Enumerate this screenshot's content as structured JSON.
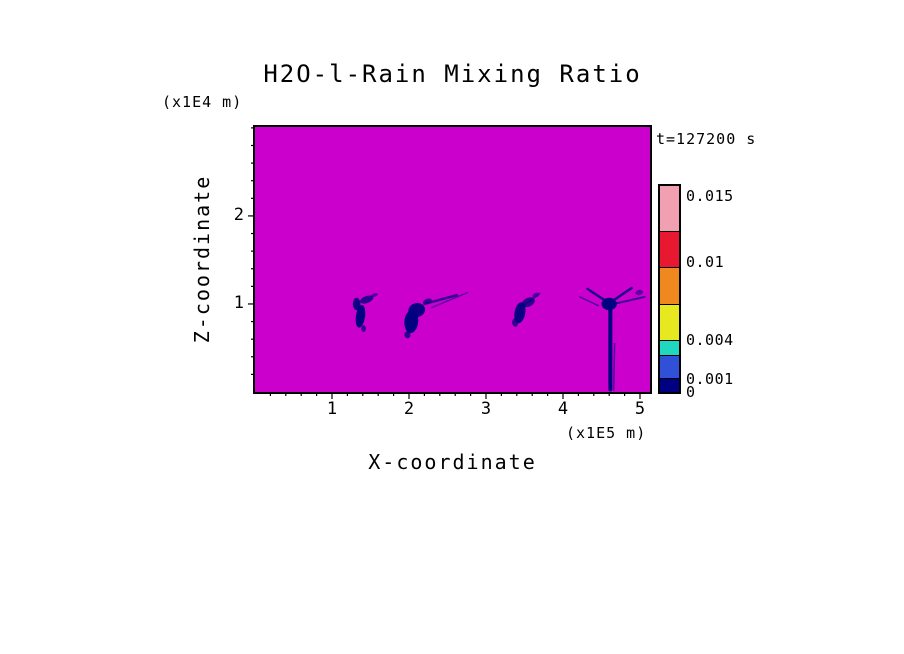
{
  "chart_data": {
    "type": "heatmap",
    "title": "H2O-l-Rain Mixing Ratio",
    "timestamp": "t=127200 s",
    "xlabel": "X-coordinate",
    "ylabel": "Z-coordinate",
    "x_units": "(x1E5 m)",
    "y_units": "(x1E4 m)",
    "xlim": [
      0,
      5.13
    ],
    "ylim": [
      0,
      3.01
    ],
    "x_major_ticks": [
      1,
      2,
      3,
      4,
      5
    ],
    "y_major_ticks": [
      1,
      2
    ],
    "minor_tick_step": 0.2,
    "grid": false,
    "legend_position": "right-colorbar",
    "background_color": "#CC00CC",
    "feature_color": "#000080",
    "colorbar": {
      "title": "",
      "labels": [
        {
          "value": "0.015",
          "frac": 0.951
        },
        {
          "value": "0.01",
          "frac": 0.631
        },
        {
          "value": "0.004",
          "frac": 0.253
        },
        {
          "value": "0.001",
          "frac": 0.065
        },
        {
          "value": "0",
          "frac": 0.0
        }
      ],
      "segments": [
        {
          "color": "#000082",
          "frac": 0.063
        },
        {
          "color": "#3050D8",
          "frac": 0.112
        },
        {
          "color": "#20D8C0",
          "frac": 0.073
        },
        {
          "color": "#E8E820",
          "frac": 0.175
        },
        {
          "color": "#F08820",
          "frac": 0.18
        },
        {
          "color": "#E81830",
          "frac": 0.175
        },
        {
          "color": "#F0A0B0",
          "frac": 0.222
        }
      ]
    },
    "rain_features": [
      {
        "t": "e",
        "x": 1.37,
        "z": 0.86,
        "rx": 0.06,
        "rz": 0.13,
        "rot": 8,
        "o": 1
      },
      {
        "t": "e",
        "x": 1.32,
        "z": 1.0,
        "rx": 0.05,
        "rz": 0.07,
        "rot": 0,
        "o": 0.9
      },
      {
        "t": "e",
        "x": 1.45,
        "z": 1.05,
        "rx": 0.09,
        "rz": 0.04,
        "rot": -20,
        "o": 0.8
      },
      {
        "t": "e",
        "x": 1.55,
        "z": 1.1,
        "rx": 0.05,
        "rz": 0.02,
        "rot": -20,
        "o": 0.55
      },
      {
        "t": "e",
        "x": 1.41,
        "z": 0.72,
        "rx": 0.03,
        "rz": 0.04,
        "rot": 0,
        "o": 0.7
      },
      {
        "t": "e",
        "x": 2.03,
        "z": 0.8,
        "rx": 0.09,
        "rz": 0.13,
        "rot": 5,
        "o": 1
      },
      {
        "t": "e",
        "x": 2.1,
        "z": 0.93,
        "rx": 0.11,
        "rz": 0.08,
        "rot": -12,
        "o": 0.95
      },
      {
        "t": "l",
        "x1": 2.2,
        "z1": 1.0,
        "x2": 2.62,
        "z2": 1.1,
        "w": 2.5,
        "o": 0.75
      },
      {
        "t": "l",
        "x1": 2.3,
        "z1": 0.96,
        "x2": 2.76,
        "z2": 1.13,
        "w": 1.5,
        "o": 0.5
      },
      {
        "t": "e",
        "x": 2.24,
        "z": 1.03,
        "rx": 0.06,
        "rz": 0.03,
        "rot": -20,
        "o": 0.7
      },
      {
        "t": "e",
        "x": 1.98,
        "z": 0.65,
        "rx": 0.04,
        "rz": 0.04,
        "rot": 0,
        "o": 0.8
      },
      {
        "t": "e",
        "x": 3.44,
        "z": 0.9,
        "rx": 0.07,
        "rz": 0.12,
        "rot": 10,
        "o": 0.95
      },
      {
        "t": "e",
        "x": 3.55,
        "z": 1.02,
        "rx": 0.09,
        "rz": 0.05,
        "rot": -25,
        "o": 0.8
      },
      {
        "t": "e",
        "x": 3.65,
        "z": 1.1,
        "rx": 0.05,
        "rz": 0.025,
        "rot": -25,
        "o": 0.55
      },
      {
        "t": "e",
        "x": 3.38,
        "z": 0.79,
        "rx": 0.04,
        "rz": 0.05,
        "rot": 0,
        "o": 0.75
      },
      {
        "t": "l",
        "x1": 3.47,
        "z1": 0.97,
        "x2": 3.7,
        "z2": 1.12,
        "w": 1.5,
        "o": 0.5
      },
      {
        "t": "e",
        "x": 4.6,
        "z": 1.0,
        "rx": 0.1,
        "rz": 0.07,
        "rot": 0,
        "o": 1
      },
      {
        "t": "l",
        "x1": 4.58,
        "z1": 1.02,
        "x2": 4.32,
        "z2": 1.17,
        "w": 2.5,
        "o": 0.85
      },
      {
        "t": "l",
        "x1": 4.62,
        "z1": 1.02,
        "x2": 4.89,
        "z2": 1.18,
        "w": 2.5,
        "o": 0.85
      },
      {
        "t": "l",
        "x1": 4.66,
        "z1": 1.0,
        "x2": 5.06,
        "z2": 1.08,
        "w": 2,
        "o": 0.7
      },
      {
        "t": "l",
        "x1": 4.46,
        "z1": 0.98,
        "x2": 4.22,
        "z2": 1.08,
        "w": 1.5,
        "o": 0.6
      },
      {
        "t": "l",
        "x1": 4.615,
        "z1": 0.03,
        "x2": 4.615,
        "z2": 1.0,
        "w": 4,
        "o": 1
      },
      {
        "t": "l",
        "x1": 4.66,
        "z1": 0.02,
        "x2": 4.67,
        "z2": 0.55,
        "w": 1.5,
        "o": 0.6
      },
      {
        "t": "e",
        "x": 4.99,
        "z": 1.13,
        "rx": 0.05,
        "rz": 0.03,
        "rot": -15,
        "o": 0.55
      }
    ]
  }
}
